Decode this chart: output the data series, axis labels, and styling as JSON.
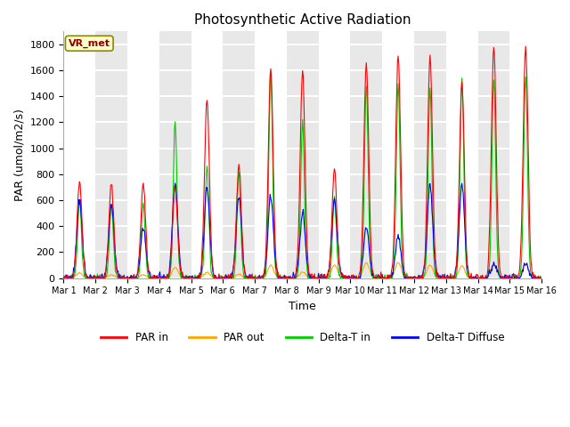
{
  "title": "Photosynthetic Active Radiation",
  "xlabel": "Time",
  "ylabel": "PAR (umol/m2/s)",
  "ylim": [
    0,
    1900
  ],
  "yticks": [
    0,
    200,
    400,
    600,
    800,
    1000,
    1200,
    1400,
    1600,
    1800
  ],
  "label_box": "VR_met",
  "colors": {
    "PAR_in": "#ff0000",
    "PAR_out": "#ffa500",
    "Delta_T_in": "#00cc00",
    "Delta_T_Diffuse": "#0000ff"
  },
  "legend": [
    "PAR in",
    "PAR out",
    "Delta-T in",
    "Delta-T Diffuse"
  ],
  "n_days": 15,
  "background_color": "#e8e8e8",
  "alt_band_color": "#ffffff",
  "figure_bg": "#ffffff",
  "par_in_peaks": [
    750,
    720,
    720,
    700,
    1380,
    880,
    1600,
    1590,
    840,
    1660,
    1720,
    1700,
    1500,
    1780,
    1780
  ],
  "par_out_peaks": [
    40,
    25,
    25,
    80,
    45,
    30,
    100,
    45,
    100,
    120,
    120,
    100,
    95,
    110,
    110
  ],
  "delta_t_in_peaks": [
    600,
    580,
    580,
    1200,
    860,
    810,
    1600,
    1200,
    620,
    1480,
    1490,
    1450,
    1550,
    1530,
    1550
  ],
  "delta_t_diff_peaks": [
    600,
    570,
    390,
    720,
    700,
    630,
    630,
    500,
    600,
    390,
    330,
    720,
    720,
    110,
    110
  ]
}
